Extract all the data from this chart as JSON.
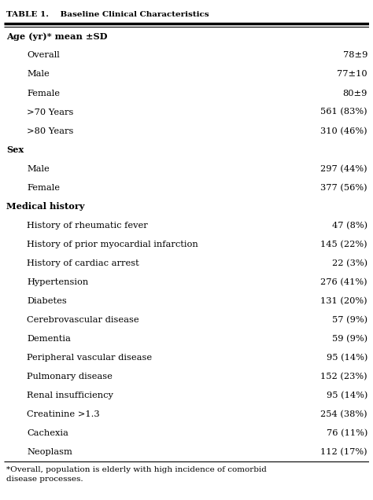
{
  "title": "TABLE 1.    Baseline Clinical Characteristics",
  "background_color": "#ffffff",
  "rows": [
    {
      "label": "Age (yr)* mean ±SD",
      "value": "",
      "indent": 0,
      "bold": true
    },
    {
      "label": "Overall",
      "value": "78±9",
      "indent": 1,
      "bold": false
    },
    {
      "label": "Male",
      "value": "77±10",
      "indent": 1,
      "bold": false
    },
    {
      "label": "Female",
      "value": "80±9",
      "indent": 1,
      "bold": false
    },
    {
      "label": ">70 Years",
      "value": "561 (83%)",
      "indent": 1,
      "bold": false
    },
    {
      "label": ">80 Years",
      "value": "310 (46%)",
      "indent": 1,
      "bold": false
    },
    {
      "label": "Sex",
      "value": "",
      "indent": 0,
      "bold": true
    },
    {
      "label": "Male",
      "value": "297 (44%)",
      "indent": 1,
      "bold": false
    },
    {
      "label": "Female",
      "value": "377 (56%)",
      "indent": 1,
      "bold": false
    },
    {
      "label": "Medical history",
      "value": "",
      "indent": 0,
      "bold": true
    },
    {
      "label": "History of rheumatic fever",
      "value": "47 (8%)",
      "indent": 1,
      "bold": false
    },
    {
      "label": "History of prior myocardial infarction",
      "value": "145 (22%)",
      "indent": 1,
      "bold": false
    },
    {
      "label": "History of cardiac arrest",
      "value": "22 (3%)",
      "indent": 1,
      "bold": false
    },
    {
      "label": "Hypertension",
      "value": "276 (41%)",
      "indent": 1,
      "bold": false
    },
    {
      "label": "Diabetes",
      "value": "131 (20%)",
      "indent": 1,
      "bold": false
    },
    {
      "label": "Cerebrovascular disease",
      "value": "57 (9%)",
      "indent": 1,
      "bold": false
    },
    {
      "label": "Dementia",
      "value": "59 (9%)",
      "indent": 1,
      "bold": false
    },
    {
      "label": "Peripheral vascular disease",
      "value": "95 (14%)",
      "indent": 1,
      "bold": false
    },
    {
      "label": "Pulmonary disease",
      "value": "152 (23%)",
      "indent": 1,
      "bold": false
    },
    {
      "label": "Renal insufficiency",
      "value": "95 (14%)",
      "indent": 1,
      "bold": false
    },
    {
      "label": "Creatinine >1.3",
      "value": "254 (38%)",
      "indent": 1,
      "bold": false
    },
    {
      "label": "Cachexia",
      "value": "76 (11%)",
      "indent": 1,
      "bold": false
    },
    {
      "label": "Neoplasm",
      "value": "112 (17%)",
      "indent": 1,
      "bold": false
    }
  ],
  "footnote_line1": "*Overall, population is elderly with high incidence of comorbid",
  "footnote_line2": "disease processes.",
  "title_fontsize": 7.5,
  "body_fontsize": 8.2,
  "footnote_fontsize": 7.5,
  "indent_amount": 0.055
}
